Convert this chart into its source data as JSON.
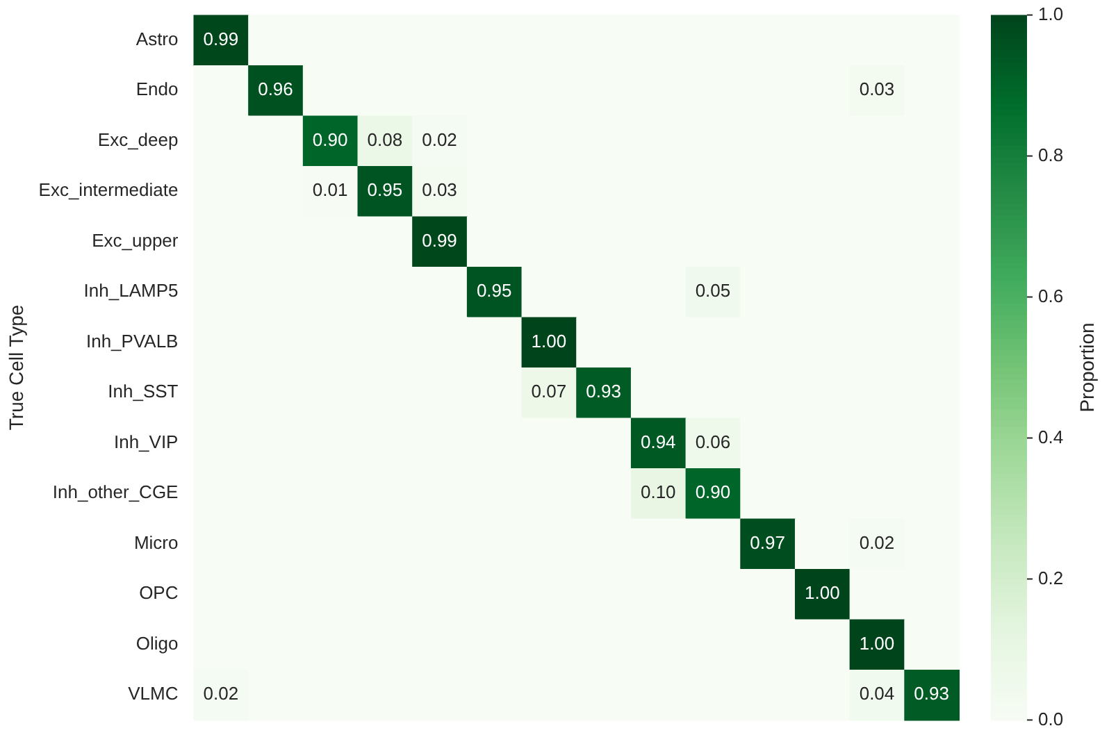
{
  "chart_data": {
    "type": "heatmap",
    "ylabel": "True Cell Type",
    "clabel": "Proportion",
    "categories": [
      null,
      null,
      null,
      null,
      null,
      null,
      null,
      null,
      null,
      null,
      null,
      null,
      null,
      null
    ],
    "y_categories": [
      "Astro",
      "Endo",
      "Exc_deep",
      "Exc_intermediate",
      "Exc_upper",
      "Inh_LAMP5",
      "Inh_PVALB",
      "Inh_SST",
      "Inh_VIP",
      "Inh_other_CGE",
      "Micro",
      "OPC",
      "Oligo",
      "VLMC"
    ],
    "cells": [
      [
        0.99,
        0,
        0,
        0,
        0,
        0,
        0,
        0,
        0,
        0,
        0,
        0,
        0,
        0
      ],
      [
        0,
        0.96,
        0,
        0,
        0,
        0,
        0,
        0,
        0,
        0,
        0,
        0,
        0.03,
        0
      ],
      [
        0,
        0,
        0.9,
        0.08,
        0.02,
        0,
        0,
        0,
        0,
        0,
        0,
        0,
        0,
        0
      ],
      [
        0,
        0,
        0.01,
        0.95,
        0.03,
        0,
        0,
        0,
        0,
        0,
        0,
        0,
        0,
        0
      ],
      [
        0,
        0,
        0,
        0,
        0.99,
        0,
        0,
        0,
        0,
        0,
        0,
        0,
        0,
        0
      ],
      [
        0,
        0,
        0,
        0,
        0,
        0.95,
        0,
        0,
        0,
        0.05,
        0,
        0,
        0,
        0
      ],
      [
        0,
        0,
        0,
        0,
        0,
        0,
        1.0,
        0,
        0,
        0,
        0,
        0,
        0,
        0
      ],
      [
        0,
        0,
        0,
        0,
        0,
        0,
        0.07,
        0.93,
        0,
        0,
        0,
        0,
        0,
        0
      ],
      [
        0,
        0,
        0,
        0,
        0,
        0,
        0,
        0,
        0.94,
        0.06,
        0,
        0,
        0,
        0
      ],
      [
        0,
        0,
        0,
        0,
        0,
        0,
        0,
        0,
        0.1,
        0.9,
        0,
        0,
        0,
        0
      ],
      [
        0,
        0,
        0,
        0,
        0,
        0,
        0,
        0,
        0,
        0,
        0.97,
        0,
        0.02,
        0
      ],
      [
        0,
        0,
        0,
        0,
        0,
        0,
        0,
        0,
        0,
        0,
        0,
        1.0,
        0,
        0
      ],
      [
        0,
        0,
        0,
        0,
        0,
        0,
        0,
        0,
        0,
        0,
        0,
        0,
        1.0,
        0
      ],
      [
        0.02,
        0,
        0,
        0,
        0,
        0,
        0,
        0,
        0,
        0,
        0,
        0,
        0.04,
        0.93
      ]
    ],
    "cell_labels": [
      [
        "0.99",
        null,
        null,
        null,
        null,
        null,
        null,
        null,
        null,
        null,
        null,
        null,
        null,
        null
      ],
      [
        null,
        "0.96",
        null,
        null,
        null,
        null,
        null,
        null,
        null,
        null,
        null,
        null,
        "0.03",
        null
      ],
      [
        null,
        null,
        "0.90",
        "0.08",
        "0.02",
        null,
        null,
        null,
        null,
        null,
        null,
        null,
        null,
        null
      ],
      [
        null,
        null,
        "0.01",
        "0.95",
        "0.03",
        null,
        null,
        null,
        null,
        null,
        null,
        null,
        null,
        null
      ],
      [
        null,
        null,
        null,
        null,
        "0.99",
        null,
        null,
        null,
        null,
        null,
        null,
        null,
        null,
        null
      ],
      [
        null,
        null,
        null,
        null,
        null,
        "0.95",
        null,
        null,
        null,
        "0.05",
        null,
        null,
        null,
        null
      ],
      [
        null,
        null,
        null,
        null,
        null,
        null,
        "1.00",
        null,
        null,
        null,
        null,
        null,
        null,
        null
      ],
      [
        null,
        null,
        null,
        null,
        null,
        null,
        "0.07",
        "0.93",
        null,
        null,
        null,
        null,
        null,
        null
      ],
      [
        null,
        null,
        null,
        null,
        null,
        null,
        null,
        null,
        "0.94",
        "0.06",
        null,
        null,
        null,
        null
      ],
      [
        null,
        null,
        null,
        null,
        null,
        null,
        null,
        null,
        "0.10",
        "0.90",
        null,
        null,
        null,
        null
      ],
      [
        null,
        null,
        null,
        null,
        null,
        null,
        null,
        null,
        null,
        null,
        "0.97",
        null,
        "0.02",
        null
      ],
      [
        null,
        null,
        null,
        null,
        null,
        null,
        null,
        null,
        null,
        null,
        null,
        "1.00",
        null,
        null
      ],
      [
        null,
        null,
        null,
        null,
        null,
        null,
        null,
        null,
        null,
        null,
        null,
        null,
        "1.00",
        null
      ],
      [
        "0.02",
        null,
        null,
        null,
        null,
        null,
        null,
        null,
        null,
        null,
        null,
        null,
        "0.04",
        "0.93"
      ]
    ],
    "clim": [
      0,
      1
    ],
    "cticks": [
      {
        "value": 0,
        "label": "0.0"
      },
      0.2,
      0.4,
      0.6,
      0.8,
      {
        "value": 1,
        "label": "1.0"
      }
    ]
  }
}
